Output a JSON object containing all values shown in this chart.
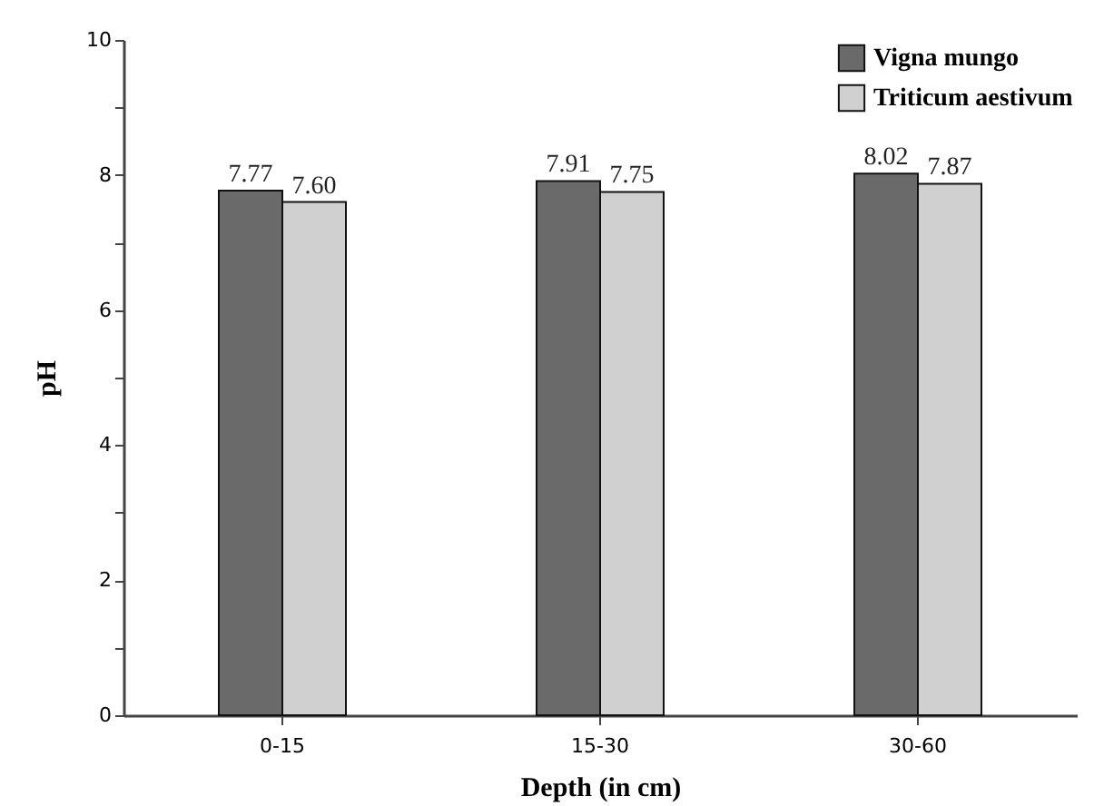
{
  "chart_data": {
    "type": "bar",
    "xlabel": "Depth (in cm)",
    "ylabel": "pH",
    "categories": [
      "0-15",
      "15-30",
      "30-60"
    ],
    "series": [
      {
        "name": "Vigna mungo",
        "color": "#6a6a6a",
        "values": [
          7.77,
          7.91,
          8.02
        ],
        "value_labels": [
          "7.77",
          "7.91",
          "8.02"
        ]
      },
      {
        "name": "Triticum aestivum",
        "color": "#d0d0d0",
        "values": [
          7.6,
          7.75,
          7.87
        ],
        "value_labels": [
          "7.60",
          "7.75",
          "7.87"
        ]
      }
    ],
    "ylim": [
      0,
      10
    ],
    "yticks": [
      0,
      {
        "value": 1,
        "label": null
      },
      2,
      {
        "value": 3,
        "label": null
      },
      4,
      {
        "value": 5,
        "label": null
      },
      6,
      {
        "value": 7,
        "label": null
      },
      8,
      {
        "value": 9,
        "label": null
      },
      10
    ],
    "grid": false,
    "legend": "top right"
  }
}
